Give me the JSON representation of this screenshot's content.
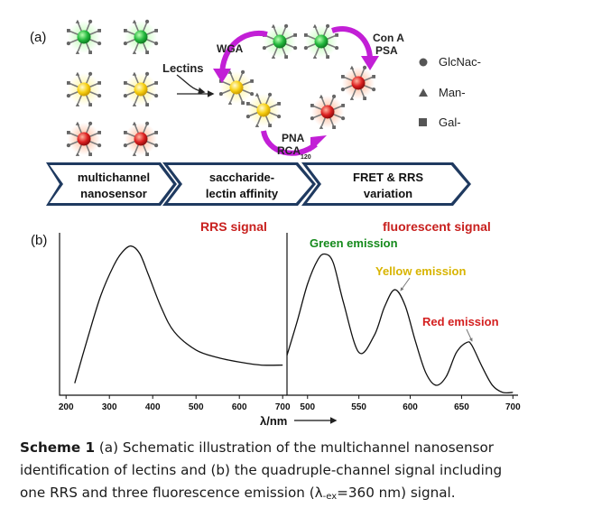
{
  "panel_a": {
    "label": "(a)",
    "lectins_label": "Lectins",
    "wga_label": "WGA",
    "conA_label": "Con A",
    "psa_label": "PSA",
    "pna_label": "PNA",
    "rca_label": "RCA",
    "rca_sub": "120",
    "legend": [
      {
        "label": "GlcNac-",
        "shape": "circle"
      },
      {
        "label": "Man-",
        "shape": "triangle"
      },
      {
        "label": "Gal-",
        "shape": "square"
      }
    ],
    "chevrons": [
      {
        "line1": "multichannel",
        "line2": "nanosensor"
      },
      {
        "line1": "saccharide-",
        "line2": "lectin affinity"
      },
      {
        "line1": "FRET & RRS",
        "line2": "variation"
      }
    ],
    "colors": {
      "green": "#1fae3a",
      "yellow": "#f4c400",
      "red": "#d61b1b",
      "magenta": "#c21fd6",
      "navy": "#1f3a60"
    }
  },
  "panel_b": {
    "label": "(b)",
    "rrs_title": "RRS signal",
    "fluor_title": "fluorescent signal",
    "green_label": "Green emission",
    "yellow_label": "Yellow emission",
    "red_label": "Red emission",
    "xlabel": "λ/nm",
    "colors": {
      "rrs_title": "#c8201e",
      "green": "#158a1c",
      "yellow": "#d8b400",
      "red": "#d42020"
    }
  },
  "chart_data": [
    {
      "type": "line",
      "title": "RRS signal",
      "xlabel": "λ/nm",
      "ylabel": "",
      "xlim": [
        185,
        710
      ],
      "ylim": [
        0,
        1
      ],
      "x_ticks": [
        200,
        300,
        400,
        500,
        600,
        700
      ],
      "series": [
        {
          "x": [
            220,
            250,
            280,
            310,
            330,
            350,
            370,
            390,
            420,
            450,
            500,
            550,
            600,
            650,
            700
          ],
          "values": [
            0.08,
            0.38,
            0.66,
            0.86,
            0.95,
            0.99,
            0.94,
            0.8,
            0.58,
            0.42,
            0.3,
            0.25,
            0.22,
            0.2,
            0.2
          ]
        }
      ]
    },
    {
      "type": "line",
      "title": "fluorescent signal",
      "xlabel": "λ/nm",
      "ylabel": "",
      "xlim": [
        480,
        705
      ],
      "ylim": [
        0,
        1
      ],
      "x_ticks": [
        500,
        550,
        600,
        650,
        700
      ],
      "series": [
        {
          "x": [
            480,
            490,
            500,
            510,
            517,
            525,
            535,
            550,
            565,
            575,
            585,
            595,
            605,
            615,
            625,
            635,
            645,
            655,
            660,
            670,
            680,
            690,
            700
          ],
          "values": [
            0.28,
            0.52,
            0.78,
            0.95,
            0.99,
            0.93,
            0.65,
            0.3,
            0.42,
            0.62,
            0.74,
            0.63,
            0.38,
            0.16,
            0.07,
            0.13,
            0.3,
            0.37,
            0.35,
            0.2,
            0.07,
            0.02,
            0.02
          ]
        }
      ],
      "annotations": [
        "Green emission",
        "Yellow emission",
        "Red emission"
      ]
    }
  ],
  "caption": {
    "bold": "Scheme 1",
    "line1_rest": " (a) Schematic illustration of the multichannel nanosensor",
    "line2": "identification of lectins and (b) the quadruple-channel signal including",
    "line3_pre": "one RRS and three fluorescence emission (λ",
    "line3_sub": "-ex",
    "line3_post": "=360 nm) signal."
  }
}
